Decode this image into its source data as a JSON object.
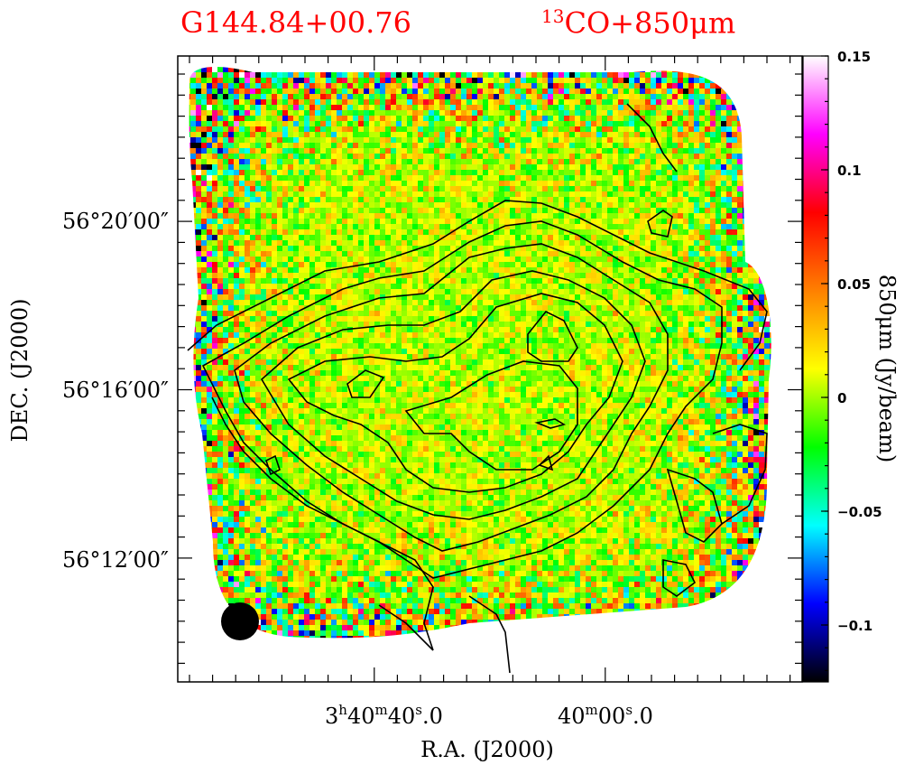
{
  "header": {
    "source_name": "G144.84+00.76",
    "tracer_sup": "13",
    "tracer_main": "CO+850μm"
  },
  "chart_data": {
    "type": "heatmap",
    "title": "G144.84+00.76 13CO+850μm",
    "xlabel": "R.A.  (J2000)",
    "ylabel": "DEC.  (J2000)",
    "x_ticks": [
      {
        "h": "3",
        "m": "40",
        "s": "40",
        "frac": "0",
        "prefix": "3h40m40s.0",
        "label_parts": [
          "3",
          "h",
          "40",
          "m",
          "40",
          "s",
          ".0"
        ]
      },
      {
        "h": "",
        "m": "40",
        "s": "00",
        "frac": "0",
        "prefix": "40m00s.0",
        "label_parts": [
          "",
          "",
          "40",
          "m",
          "00",
          "s",
          ".0"
        ]
      }
    ],
    "y_ticks": [
      "56°20′00″",
      "56°16′00″",
      "56°12′00″"
    ],
    "colorbar": {
      "label": "850μm  (Jy/beam)",
      "range": [
        -0.125,
        0.15
      ],
      "ticks": [
        {
          "label": "0.15",
          "value": 0.15
        },
        {
          "label": "0.1",
          "value": 0.1
        },
        {
          "label": "0.05",
          "value": 0.05
        },
        {
          "label": "0",
          "value": 0.0
        },
        {
          "label": "−0.05",
          "value": -0.05
        },
        {
          "label": "−0.1",
          "value": -0.1
        }
      ],
      "stops": [
        "#000000",
        "#0000ff",
        "#00ffff",
        "#00ff00",
        "#ffff00",
        "#ff8000",
        "#ff0000",
        "#ff00ff",
        "#ffffff"
      ]
    },
    "contour_overlay": "13CO",
    "beam": "filled circle",
    "colors": {
      "title": "#ff0000",
      "contour": "#000000",
      "background": "#ffffff"
    }
  }
}
